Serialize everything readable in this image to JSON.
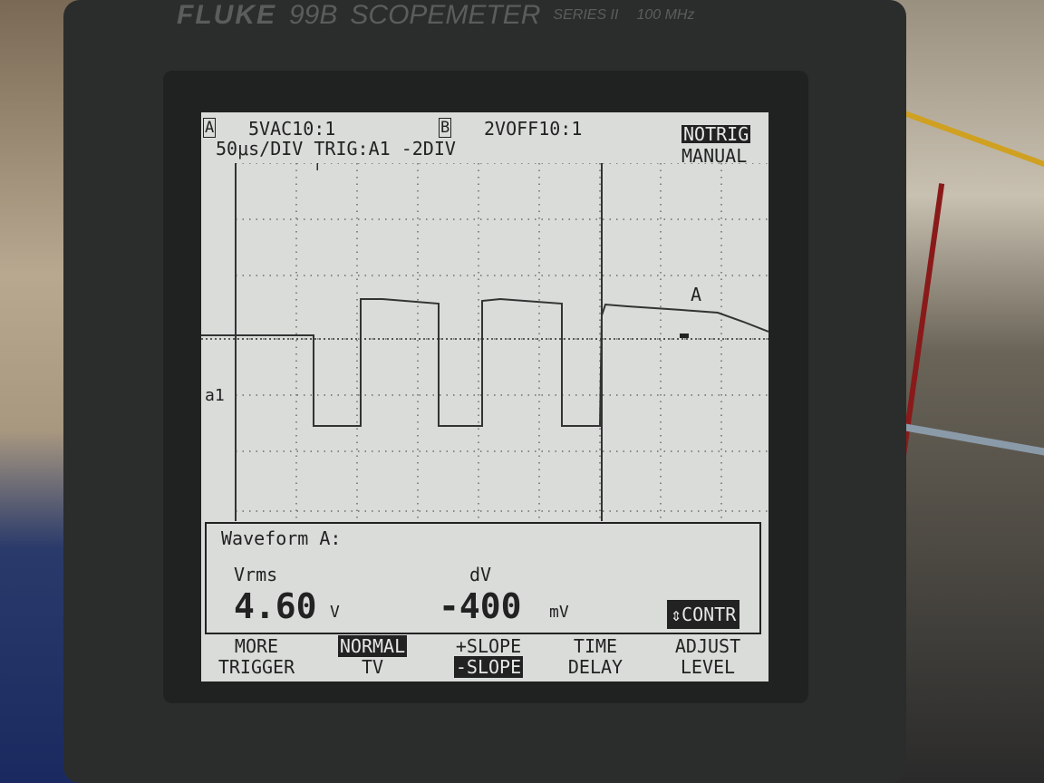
{
  "device": {
    "brand": "FLUKE",
    "model": "99B",
    "name": "SCOPEMETER",
    "series": "SERIES II",
    "bandwidth": "100 MHz"
  },
  "status_bar": {
    "channel_a_tag": "A",
    "channel_a_setting": "5VAC10:1",
    "channel_b_tag": "B",
    "channel_b_setting": "2VOFF10:1",
    "timebase_trigger": "50μs/DIV TRIG:A1 -2DIV",
    "trigger_state": "NOTRIG",
    "trigger_mode": "MANUAL"
  },
  "plot": {
    "trace_label": "A",
    "reference_marker": "a1",
    "trigger_marker": "T"
  },
  "measurement": {
    "title": "Waveform A:",
    "m1_label": "Vrms",
    "m1_value": "4.60",
    "m1_unit": "V",
    "m2_label": "dV",
    "m2_value": "-400",
    "m2_unit": "mV",
    "contrast_button": "⇕CONTR"
  },
  "softkeys": [
    {
      "line1": "MORE",
      "line2": "TRIGGER"
    },
    {
      "line1": "NORMAL",
      "line2": "TV"
    },
    {
      "line1": "+SLOPE",
      "line2": "-SLOPE"
    },
    {
      "line1": "TIME",
      "line2": "DELAY"
    },
    {
      "line1": "ADJUST",
      "line2": "LEVEL"
    }
  ]
}
